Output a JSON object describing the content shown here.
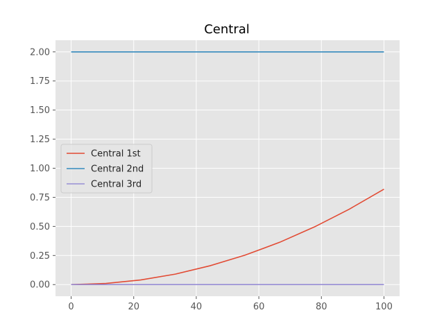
{
  "chart_data": {
    "type": "line",
    "title": "Central",
    "xlabel": "",
    "ylabel": "",
    "xlim": [
      -5,
      105
    ],
    "ylim": [
      -0.1,
      2.1
    ],
    "xticks": [
      0,
      20,
      40,
      60,
      80,
      100
    ],
    "yticks": [
      0.0,
      0.25,
      0.5,
      0.75,
      1.0,
      1.25,
      1.5,
      1.75,
      2.0
    ],
    "xtick_labels": [
      "0",
      "20",
      "40",
      "60",
      "80",
      "100"
    ],
    "ytick_labels": [
      "0.00",
      "0.25",
      "0.50",
      "0.75",
      "1.00",
      "1.25",
      "1.50",
      "1.75",
      "2.00"
    ],
    "grid": true,
    "legend_position": "center-left",
    "x": [
      0,
      11.1,
      22.2,
      33.3,
      44.4,
      55.6,
      66.7,
      77.8,
      88.9,
      100
    ],
    "series": [
      {
        "name": "Central 1st",
        "color": "#E24A33",
        "values": [
          0.0,
          0.01,
          0.04,
          0.09,
          0.162,
          0.253,
          0.364,
          0.496,
          0.648,
          0.82
        ]
      },
      {
        "name": "Central 2nd",
        "color": "#348ABD",
        "values": [
          2.0,
          2.0,
          2.0,
          2.0,
          2.0,
          2.0,
          2.0,
          2.0,
          2.0,
          2.0
        ]
      },
      {
        "name": "Central 3rd",
        "color": "#988ED5",
        "values": [
          0.0,
          0.0,
          0.0,
          0.0,
          0.0,
          0.0,
          0.0,
          0.0,
          0.0,
          0.0
        ]
      }
    ]
  }
}
